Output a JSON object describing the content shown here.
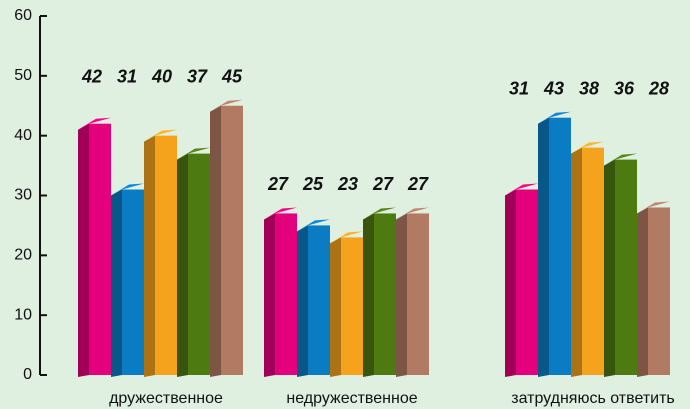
{
  "chart_data": {
    "type": "bar3d",
    "categories": [
      "дружественное",
      "недружественное",
      "затрудняюсь ответить"
    ],
    "series": [
      {
        "color": "#e4007d",
        "values": [
          42,
          27,
          31
        ]
      },
      {
        "color": "#0a7cc4",
        "values": [
          31,
          25,
          43
        ]
      },
      {
        "color": "#f5a31c",
        "values": [
          40,
          23,
          38
        ]
      },
      {
        "color": "#4e7a12",
        "values": [
          37,
          27,
          36
        ]
      },
      {
        "color": "#b27a63",
        "values": [
          45,
          27,
          28
        ]
      }
    ],
    "ylim": [
      0,
      60
    ],
    "yticks": [
      0,
      10,
      20,
      30,
      40,
      50,
      60
    ]
  }
}
